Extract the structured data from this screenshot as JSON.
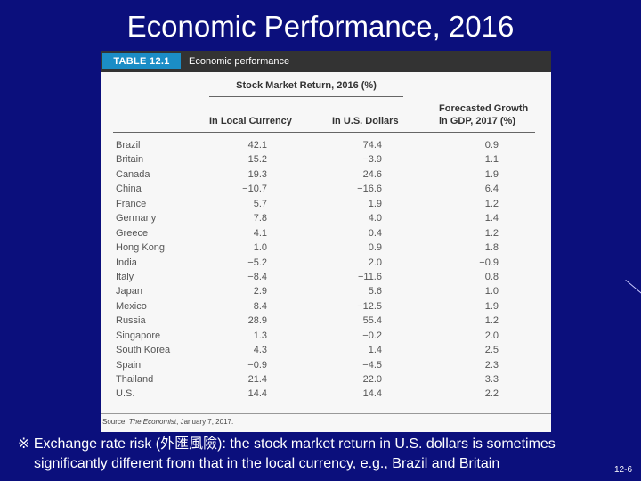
{
  "slide": {
    "title": "Economic Performance, 2016",
    "page_number": "12-6"
  },
  "table": {
    "label": "TABLE 12.1",
    "caption": "Economic performance",
    "group_header": "Stock Market Return, 2016 (%)",
    "columns": {
      "local": "In Local Currency",
      "usd": "In U.S. Dollars",
      "gdp_line1": "Forecasted Growth",
      "gdp_line2": "in GDP, 2017 (%)"
    },
    "rows": [
      {
        "country": "Brazil",
        "local": "42.1",
        "usd": "74.4",
        "gdp": "0.9"
      },
      {
        "country": "Britain",
        "local": "15.2",
        "usd": "−3.9",
        "gdp": "1.1"
      },
      {
        "country": "Canada",
        "local": "19.3",
        "usd": "24.6",
        "gdp": "1.9"
      },
      {
        "country": "China",
        "local": "−10.7",
        "usd": "−16.6",
        "gdp": "6.4"
      },
      {
        "country": "France",
        "local": "5.7",
        "usd": "1.9",
        "gdp": "1.2"
      },
      {
        "country": "Germany",
        "local": "7.8",
        "usd": "4.0",
        "gdp": "1.4"
      },
      {
        "country": "Greece",
        "local": "4.1",
        "usd": "0.4",
        "gdp": "1.2"
      },
      {
        "country": "Hong Kong",
        "local": "1.0",
        "usd": "0.9",
        "gdp": "1.8"
      },
      {
        "country": "India",
        "local": "−5.2",
        "usd": "2.0",
        "gdp": "−0.9"
      },
      {
        "country": "Italy",
        "local": "−8.4",
        "usd": "−11.6",
        "gdp": "0.8"
      },
      {
        "country": "Japan",
        "local": "2.9",
        "usd": "5.6",
        "gdp": "1.0"
      },
      {
        "country": "Mexico",
        "local": "8.4",
        "usd": "−12.5",
        "gdp": "1.9"
      },
      {
        "country": "Russia",
        "local": "28.9",
        "usd": "55.4",
        "gdp": "1.2"
      },
      {
        "country": "Singapore",
        "local": "1.3",
        "usd": "−0.2",
        "gdp": "2.0"
      },
      {
        "country": "South Korea",
        "local": "4.3",
        "usd": "1.4",
        "gdp": "2.5"
      },
      {
        "country": "Spain",
        "local": "−0.9",
        "usd": "−4.5",
        "gdp": "2.3"
      },
      {
        "country": "Thailand",
        "local": "21.4",
        "usd": "22.0",
        "gdp": "3.3"
      },
      {
        "country": "U.S.",
        "local": "14.4",
        "usd": "14.4",
        "gdp": "2.2"
      }
    ],
    "source_label": "Source: ",
    "source_pub": "The Economist",
    "source_date": ", January 7, 2017."
  },
  "note": {
    "line1": "※ Exchange rate risk (外匯風險): the stock market return in U.S. dollars is sometimes",
    "line2": "significantly different from that in the local currency, e.g., Brazil and Britain"
  }
}
